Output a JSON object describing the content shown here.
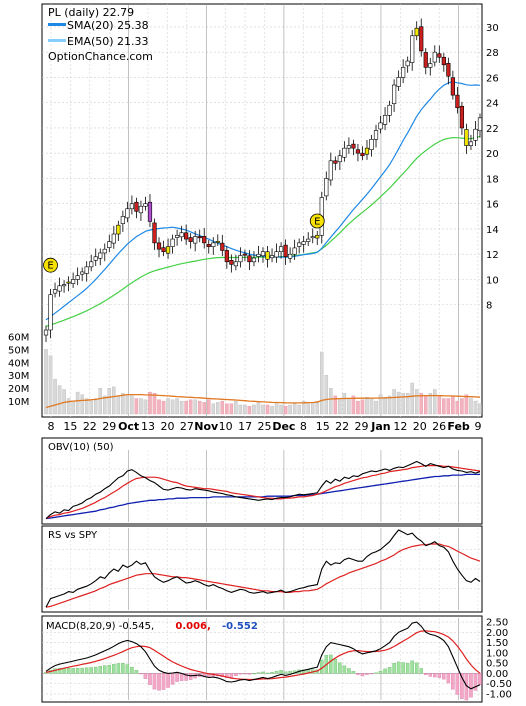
{
  "chart_data": {
    "type": "candlestick-stock-chart",
    "symbol_line": "PL (daily) 22.79",
    "watermark": "OptionChance.com",
    "main_panel": {
      "legend": [
        {
          "label": "SMA(20) 25.38",
          "color": "#1e88e5"
        },
        {
          "label": "EMA(50) 21.33",
          "color": "#87cefa"
        }
      ],
      "y_axis_ticks": [
        30,
        28,
        26,
        24,
        22,
        20,
        18,
        16,
        14,
        12,
        10,
        8
      ],
      "y_range": [
        6,
        31.5
      ],
      "volume_axis_ticks": [
        "60M",
        "50M",
        "40M",
        "30M",
        "20M",
        "10M"
      ],
      "volume_range_millions": [
        0,
        65
      ],
      "x_axis_labels": [
        {
          "text": "8",
          "bold": false
        },
        {
          "text": "15",
          "bold": false
        },
        {
          "text": "22",
          "bold": false
        },
        {
          "text": "29",
          "bold": false
        },
        {
          "text": "Oct",
          "bold": true
        },
        {
          "text": "13",
          "bold": false
        },
        {
          "text": "20",
          "bold": false
        },
        {
          "text": "27",
          "bold": false
        },
        {
          "text": "Nov",
          "bold": true
        },
        {
          "text": "10",
          "bold": false
        },
        {
          "text": "17",
          "bold": false
        },
        {
          "text": "25",
          "bold": false
        },
        {
          "text": "Dec",
          "bold": true
        },
        {
          "text": "8",
          "bold": false
        },
        {
          "text": "15",
          "bold": false
        },
        {
          "text": "22",
          "bold": false
        },
        {
          "text": "29",
          "bold": false
        },
        {
          "text": "Jan",
          "bold": true
        },
        {
          "text": "12",
          "bold": false
        },
        {
          "text": "20",
          "bold": false
        },
        {
          "text": "26",
          "bold": false
        },
        {
          "text": "Feb",
          "bold": true
        },
        {
          "text": "9",
          "bold": false
        }
      ],
      "earnings_markers": [
        {
          "label": "E",
          "bar_index": 1,
          "price": 10.5
        },
        {
          "label": "E",
          "bar_index": 60,
          "price": 14.0
        }
      ],
      "close_series": [
        6,
        8.8,
        9.2,
        9.5,
        9.6,
        9.8,
        10,
        10.3,
        10.6,
        11,
        11.4,
        11.8,
        12.1,
        12.4,
        13,
        13.6,
        14.3,
        15,
        15.6,
        16,
        15.4,
        15.8,
        16,
        14.6,
        12.9,
        12.4,
        12.2,
        12.6,
        13.2,
        13.5,
        13.7,
        13.2,
        13,
        13.4,
        13.3,
        12.9,
        12.6,
        12.9,
        13,
        12.3,
        11.4,
        11.2,
        11.4,
        11.9,
        12,
        11.4,
        11.7,
        12,
        12.2,
        11.6,
        11.9,
        12.2,
        12.6,
        11.8,
        12,
        12.5,
        12.9,
        13,
        13.2,
        13.4,
        13.5,
        16.5,
        18,
        19.4,
        19.2,
        19.8,
        20.4,
        20.6,
        20.4,
        20,
        19.8,
        20.4,
        21.1,
        21.8,
        22.4,
        23,
        23.8,
        25.4,
        26,
        26.8,
        27.3,
        29.3,
        29.9,
        28.1,
        26.8,
        27.1,
        28,
        27.6,
        27,
        26.1,
        24.6,
        23.6,
        22,
        20.6,
        20.9,
        21.9,
        22.8
      ],
      "sma20_series": [
        6.8,
        7.06,
        7.33,
        7.61,
        7.89,
        8.17,
        8.44,
        8.72,
        9,
        9.3,
        9.64,
        10.01,
        10.4,
        10.8,
        11.21,
        11.63,
        12.05,
        12.43,
        12.8,
        13.1,
        13.4,
        13.6,
        13.82,
        13.92,
        13.98,
        14.04,
        14.08,
        14.1,
        14.14,
        14.08,
        14,
        13.91,
        13.77,
        13.62,
        13.48,
        13.32,
        13.2,
        13.02,
        12.88,
        12.72,
        12.6,
        12.45,
        12.32,
        12.2,
        12.12,
        12,
        11.93,
        11.88,
        11.85,
        11.82,
        11.8,
        11.78,
        11.77,
        11.77,
        11.78,
        11.84,
        11.9,
        11.96,
        12.01,
        12.06,
        12.15,
        12.47,
        12.92,
        13.36,
        13.78,
        14.2,
        14.65,
        15.1,
        15.54,
        15.94,
        16.35,
        16.76,
        17.2,
        17.66,
        18.13,
        18.6,
        19.1,
        19.7,
        20.34,
        21.01,
        21.62,
        22.27,
        22.92,
        23.44,
        23.88,
        24.28,
        24.72,
        25.08,
        25.38,
        25.58,
        25.66,
        25.58,
        25.52,
        25.42,
        25.38,
        25.4,
        25.38
      ],
      "ema50_series": [
        6.3,
        6.4,
        6.52,
        6.65,
        6.78,
        6.92,
        7.05,
        7.2,
        7.36,
        7.52,
        7.7,
        7.89,
        8.08,
        8.3,
        8.52,
        8.75,
        8.99,
        9.24,
        9.5,
        9.74,
        9.97,
        10.2,
        10.39,
        10.56,
        10.69,
        10.79,
        10.89,
        10.99,
        11.08,
        11.17,
        11.25,
        11.32,
        11.39,
        11.46,
        11.53,
        11.6,
        11.65,
        11.7,
        11.73,
        11.74,
        11.74,
        11.74,
        11.74,
        11.75,
        11.76,
        11.76,
        11.76,
        11.77,
        11.78,
        11.78,
        11.79,
        11.79,
        11.81,
        11.82,
        11.85,
        11.89,
        11.93,
        11.98,
        12.04,
        12.11,
        12.17,
        12.43,
        12.7,
        13.03,
        13.35,
        13.7,
        14.06,
        14.41,
        14.73,
        15.03,
        15.32,
        15.61,
        15.9,
        16.22,
        16.55,
        16.89,
        17.24,
        17.62,
        18.01,
        18.39,
        18.78,
        19.2,
        19.6,
        19.92,
        20.21,
        20.47,
        20.72,
        20.92,
        21.09,
        21.18,
        21.24,
        21.23,
        21.2,
        21.16,
        21.16,
        21.24,
        21.33
      ],
      "volume_millions": [
        50,
        45,
        27,
        22,
        19,
        12,
        10,
        17,
        15,
        12,
        10,
        12,
        20,
        14,
        20,
        21,
        14,
        16,
        15,
        14,
        12,
        12,
        11,
        17,
        16,
        11,
        10,
        12,
        11,
        12,
        10,
        10,
        11,
        11,
        10,
        9,
        11,
        8,
        9,
        10,
        8,
        8,
        10,
        7,
        7,
        6,
        7,
        9,
        7,
        7,
        6,
        8,
        7,
        6,
        7,
        8,
        7,
        10,
        8,
        9,
        10,
        48,
        30,
        20,
        14,
        12,
        16,
        12,
        14,
        10,
        11,
        13,
        12,
        10,
        15,
        12,
        14,
        19,
        17,
        16,
        16,
        24,
        19,
        16,
        14,
        16,
        19,
        14,
        12,
        12,
        14,
        10,
        12,
        15,
        12,
        10,
        8
      ],
      "volume_average_millions": [
        5,
        6,
        7,
        8,
        9,
        9.5,
        10,
        10.2,
        10.5,
        10.7,
        11,
        11.3,
        12,
        12.5,
        13,
        13.5,
        14,
        14.5,
        15,
        15,
        15,
        15,
        14.8,
        14.7,
        14.6,
        14.4,
        14.2,
        14,
        13.8,
        13.5,
        13.3,
        13.1,
        12.9,
        12.7,
        12.5,
        12.2,
        12,
        11.8,
        11.6,
        11.4,
        11.2,
        11,
        10.8,
        10.5,
        10.3,
        10,
        9.8,
        9.6,
        9.4,
        9.2,
        9,
        8.9,
        8.8,
        8.7,
        8.6,
        8.6,
        8.6,
        8.7,
        8.8,
        8.9,
        9.2,
        10.5,
        11.2,
        11.6,
        11.8,
        11.9,
        12,
        12.1,
        12.1,
        12.2,
        12.2,
        12.3,
        12.3,
        12.3,
        12.4,
        12.5,
        12.6,
        12.8,
        13,
        13.2,
        13.4,
        13.8,
        14,
        14.1,
        14.2,
        14.2,
        14.3,
        14.2,
        14.1,
        14,
        13.9,
        13.8,
        13.6,
        13.5,
        13.4,
        13.2,
        13
      ]
    },
    "obv_panel": {
      "label": "OBV(10) (50)",
      "obv_series": [
        0.02,
        0.08,
        0.12,
        0.1,
        0.15,
        0.14,
        0.2,
        0.22,
        0.25,
        0.3,
        0.33,
        0.38,
        0.41,
        0.46,
        0.5,
        0.56,
        0.62,
        0.65,
        0.72,
        0.74,
        0.7,
        0.65,
        0.62,
        0.58,
        0.55,
        0.5,
        0.45,
        0.44,
        0.46,
        0.48,
        0.47,
        0.45,
        0.44,
        0.46,
        0.45,
        0.44,
        0.43,
        0.41,
        0.4,
        0.39,
        0.37,
        0.36,
        0.34,
        0.33,
        0.32,
        0.31,
        0.3,
        0.29,
        0.3,
        0.31,
        0.3,
        0.32,
        0.33,
        0.33,
        0.34,
        0.36,
        0.38,
        0.37,
        0.38,
        0.39,
        0.4,
        0.5,
        0.58,
        0.54,
        0.6,
        0.57,
        0.63,
        0.61,
        0.65,
        0.64,
        0.68,
        0.7,
        0.72,
        0.71,
        0.73,
        0.75,
        0.73,
        0.76,
        0.78,
        0.77,
        0.8,
        0.83,
        0.86,
        0.83,
        0.79,
        0.83,
        0.81,
        0.79,
        0.77,
        0.79,
        0.75,
        0.73,
        0.72,
        0.7,
        0.71,
        0.69,
        0.71
      ],
      "obv_ma10_series": [
        0.02,
        0.05,
        0.07,
        0.08,
        0.1,
        0.11,
        0.13,
        0.15,
        0.17,
        0.2,
        0.23,
        0.26,
        0.3,
        0.33,
        0.37,
        0.41,
        0.45,
        0.5,
        0.54,
        0.58,
        0.61,
        0.62,
        0.63,
        0.63,
        0.63,
        0.62,
        0.6,
        0.58,
        0.56,
        0.55,
        0.52,
        0.5,
        0.49,
        0.48,
        0.47,
        0.46,
        0.46,
        0.45,
        0.44,
        0.43,
        0.42,
        0.4,
        0.39,
        0.38,
        0.37,
        0.36,
        0.35,
        0.34,
        0.33,
        0.32,
        0.32,
        0.31,
        0.31,
        0.32,
        0.32,
        0.33,
        0.34,
        0.34,
        0.35,
        0.36,
        0.38,
        0.4,
        0.43,
        0.46,
        0.49,
        0.51,
        0.54,
        0.56,
        0.58,
        0.6,
        0.62,
        0.63,
        0.65,
        0.66,
        0.68,
        0.69,
        0.71,
        0.72,
        0.73,
        0.74,
        0.75,
        0.77,
        0.78,
        0.79,
        0.8,
        0.8,
        0.8,
        0.8,
        0.79,
        0.79,
        0.78,
        0.77,
        0.76,
        0.75,
        0.74,
        0.73,
        0.72
      ],
      "obv_ma50_series": [
        0.02,
        0.03,
        0.04,
        0.05,
        0.06,
        0.07,
        0.08,
        0.09,
        0.1,
        0.11,
        0.12,
        0.13,
        0.15,
        0.16,
        0.18,
        0.19,
        0.21,
        0.22,
        0.24,
        0.25,
        0.26,
        0.27,
        0.28,
        0.29,
        0.29,
        0.3,
        0.3,
        0.31,
        0.31,
        0.32,
        0.32,
        0.32,
        0.33,
        0.33,
        0.33,
        0.33,
        0.33,
        0.34,
        0.34,
        0.34,
        0.34,
        0.34,
        0.34,
        0.34,
        0.34,
        0.34,
        0.34,
        0.34,
        0.34,
        0.35,
        0.35,
        0.35,
        0.35,
        0.35,
        0.35,
        0.36,
        0.36,
        0.36,
        0.37,
        0.37,
        0.38,
        0.39,
        0.4,
        0.41,
        0.42,
        0.43,
        0.44,
        0.45,
        0.46,
        0.47,
        0.48,
        0.49,
        0.5,
        0.51,
        0.52,
        0.53,
        0.54,
        0.55,
        0.56,
        0.57,
        0.58,
        0.59,
        0.6,
        0.61,
        0.62,
        0.63,
        0.64,
        0.64,
        0.65,
        0.65,
        0.66,
        0.66,
        0.66,
        0.67,
        0.67,
        0.67,
        0.67
      ]
    },
    "rs_panel": {
      "label": "RS vs SPY",
      "rs_series": [
        0.01,
        0.12,
        0.14,
        0.16,
        0.18,
        0.21,
        0.2,
        0.24,
        0.26,
        0.28,
        0.31,
        0.35,
        0.4,
        0.38,
        0.45,
        0.5,
        0.47,
        0.55,
        0.52,
        0.55,
        0.6,
        0.56,
        0.58,
        0.48,
        0.4,
        0.36,
        0.33,
        0.35,
        0.38,
        0.4,
        0.36,
        0.32,
        0.33,
        0.35,
        0.33,
        0.3,
        0.28,
        0.3,
        0.27,
        0.25,
        0.22,
        0.2,
        0.22,
        0.24,
        0.23,
        0.2,
        0.19,
        0.2,
        0.21,
        0.19,
        0.2,
        0.21,
        0.23,
        0.2,
        0.21,
        0.23,
        0.25,
        0.26,
        0.28,
        0.29,
        0.3,
        0.5,
        0.6,
        0.55,
        0.58,
        0.57,
        0.62,
        0.64,
        0.62,
        0.6,
        0.6,
        0.66,
        0.7,
        0.72,
        0.75,
        0.8,
        0.85,
        0.93,
        1.0,
        0.97,
        0.94,
        0.96,
        0.9,
        0.86,
        0.8,
        0.82,
        0.85,
        0.8,
        0.78,
        0.72,
        0.6,
        0.5,
        0.42,
        0.35,
        0.33,
        0.38,
        0.34
      ],
      "rs_ma_series": [
        0.01,
        0.02,
        0.04,
        0.06,
        0.08,
        0.1,
        0.12,
        0.14,
        0.16,
        0.18,
        0.2,
        0.22,
        0.25,
        0.27,
        0.3,
        0.32,
        0.34,
        0.36,
        0.38,
        0.4,
        0.42,
        0.43,
        0.44,
        0.44,
        0.44,
        0.43,
        0.42,
        0.41,
        0.4,
        0.4,
        0.39,
        0.39,
        0.38,
        0.37,
        0.36,
        0.35,
        0.34,
        0.33,
        0.32,
        0.31,
        0.3,
        0.29,
        0.28,
        0.27,
        0.26,
        0.25,
        0.24,
        0.23,
        0.22,
        0.22,
        0.21,
        0.21,
        0.21,
        0.2,
        0.2,
        0.21,
        0.21,
        0.22,
        0.22,
        0.23,
        0.24,
        0.27,
        0.31,
        0.34,
        0.37,
        0.4,
        0.42,
        0.45,
        0.47,
        0.49,
        0.51,
        0.53,
        0.55,
        0.57,
        0.6,
        0.62,
        0.65,
        0.68,
        0.72,
        0.75,
        0.77,
        0.79,
        0.8,
        0.81,
        0.81,
        0.82,
        0.82,
        0.82,
        0.8,
        0.79,
        0.76,
        0.73,
        0.7,
        0.67,
        0.64,
        0.62,
        0.6
      ]
    },
    "macd_panel": {
      "label_prefix": "MACD(8,20,9) -0.545,",
      "label_signal": "0.006,",
      "label_histogram": "-0.552",
      "y_axis_ticks": [
        "2.50",
        "2.00",
        "1.50",
        "1.00",
        "0.50",
        "0.00",
        "-0.50",
        "-1.00"
      ],
      "y_range": [
        -1.2,
        2.6
      ],
      "macd_series": [
        0.1,
        0.25,
        0.38,
        0.45,
        0.5,
        0.55,
        0.6,
        0.65,
        0.7,
        0.75,
        0.82,
        0.9,
        1.0,
        1.1,
        1.2,
        1.32,
        1.45,
        1.55,
        1.6,
        1.55,
        1.45,
        1.3,
        1.05,
        0.7,
        0.35,
        0.15,
        0.05,
        0.0,
        0.02,
        0.05,
        0.0,
        -0.08,
        -0.12,
        -0.1,
        -0.08,
        -0.15,
        -0.2,
        -0.18,
        -0.22,
        -0.3,
        -0.4,
        -0.42,
        -0.38,
        -0.32,
        -0.3,
        -0.35,
        -0.3,
        -0.25,
        -0.2,
        -0.25,
        -0.2,
        -0.12,
        -0.05,
        -0.1,
        -0.05,
        0.02,
        0.1,
        0.15,
        0.2,
        0.25,
        0.3,
        0.9,
        1.3,
        1.5,
        1.45,
        1.4,
        1.35,
        1.3,
        1.2,
        1.05,
        0.95,
        1.0,
        1.05,
        1.1,
        1.2,
        1.35,
        1.5,
        1.8,
        2.0,
        2.1,
        2.2,
        2.45,
        2.5,
        2.3,
        2.0,
        1.9,
        1.85,
        1.75,
        1.6,
        1.3,
        0.8,
        0.3,
        -0.2,
        -0.6,
        -0.75,
        -0.65,
        -0.55
      ],
      "signal_series": [
        0.05,
        0.09,
        0.15,
        0.2,
        0.25,
        0.3,
        0.35,
        0.39,
        0.44,
        0.48,
        0.53,
        0.59,
        0.65,
        0.72,
        0.8,
        0.88,
        0.97,
        1.06,
        1.17,
        1.25,
        1.3,
        1.33,
        1.31,
        1.25,
        1.12,
        0.98,
        0.84,
        0.69,
        0.56,
        0.45,
        0.36,
        0.27,
        0.19,
        0.13,
        0.08,
        0.03,
        -0.02,
        -0.05,
        -0.09,
        -0.13,
        -0.18,
        -0.23,
        -0.26,
        -0.28,
        -0.29,
        -0.3,
        -0.3,
        -0.29,
        -0.27,
        -0.27,
        -0.26,
        -0.23,
        -0.2,
        -0.18,
        -0.15,
        -0.11,
        -0.07,
        -0.03,
        0.02,
        0.07,
        0.12,
        0.25,
        0.42,
        0.6,
        0.75,
        0.88,
        0.98,
        1.06,
        1.1,
        1.11,
        1.08,
        1.06,
        1.06,
        1.07,
        1.09,
        1.13,
        1.2,
        1.31,
        1.44,
        1.57,
        1.7,
        1.84,
        1.98,
        2.06,
        2.07,
        2.05,
        2.03,
        1.97,
        1.89,
        1.77,
        1.58,
        1.33,
        1.03,
        0.7,
        0.41,
        0.18,
        0.006
      ]
    }
  }
}
